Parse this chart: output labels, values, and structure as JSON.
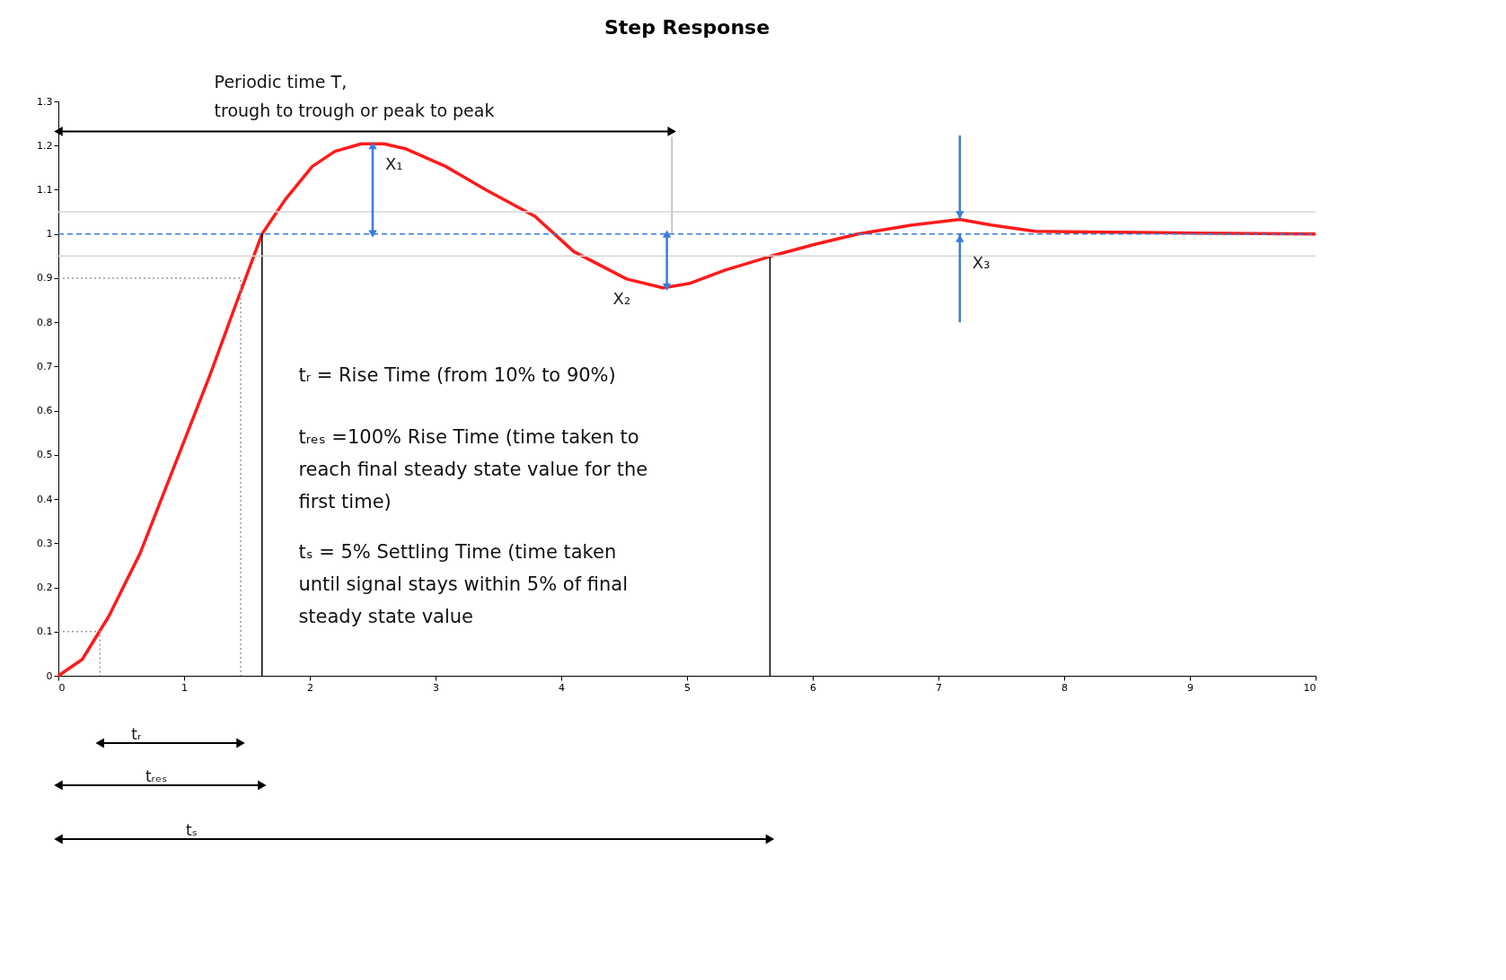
{
  "chart_data": {
    "type": "line",
    "title": "Step Response",
    "series": [
      {
        "color": "#ff1a1a",
        "x": [
          0,
          0.19,
          0.4,
          0.65,
          0.93,
          1.21,
          1.42,
          1.62,
          1.81,
          2.02,
          2.2,
          2.41,
          2.59,
          2.76,
          3.08,
          3.4,
          3.79,
          4.1,
          4.52,
          4.81,
          5.02,
          5.3,
          5.66,
          6.01,
          6.36,
          6.79,
          7.17,
          7.42,
          7.77,
          8.34,
          9.04,
          10
        ],
        "values": [
          0,
          0.037,
          0.134,
          0.277,
          0.48,
          0.684,
          0.847,
          1.0,
          1.08,
          1.153,
          1.187,
          1.204,
          1.204,
          1.193,
          1.153,
          1.1,
          1.04,
          0.96,
          0.898,
          0.878,
          0.888,
          0.918,
          0.949,
          0.976,
          1.0,
          1.02,
          1.033,
          1.02,
          1.006,
          1.004,
          1.002,
          1.0
        ]
      },
      {
        "type": "line",
        "color": "#999999",
        "line_style": "dotted",
        "x": [
          0,
          0.33,
          0.33
        ],
        "values": [
          0.1,
          0.1,
          0
        ]
      },
      {
        "type": "line",
        "color": "#999999",
        "line_style": "dotted",
        "x": [
          0,
          1.45,
          1.45
        ],
        "values": [
          0.9,
          0.9,
          0
        ]
      },
      {
        "type": "line",
        "color": "#000000",
        "line_style": "solid",
        "x": [
          1.62,
          1.62
        ],
        "values": [
          1.0,
          0
        ]
      },
      {
        "type": "line",
        "color": "#000000",
        "line_style": "solid",
        "x": [
          5.66,
          5.66
        ],
        "values": [
          0.95,
          0
        ]
      },
      {
        "type": "line",
        "color": "#bbbbbb",
        "line_style": "solid",
        "x": [
          4.88,
          4.88
        ],
        "values": [
          1.22,
          1.0
        ]
      }
    ],
    "xlim": [
      0,
      10
    ],
    "ylim": [
      0,
      1.3
    ],
    "xticks": [
      0,
      1,
      2,
      3,
      4,
      5,
      6,
      7,
      8,
      9,
      10
    ],
    "yticks": [
      0,
      0.1,
      0.2,
      0.3,
      0.4,
      0.5,
      0.6,
      0.7,
      0.8,
      0.9,
      1,
      1.1,
      1.2,
      1.3
    ],
    "grid": false,
    "marker": "none",
    "line_style": "solid",
    "ref_lines": [
      {
        "axis": "y",
        "value": 1,
        "color": "#3b7dd8",
        "line_style": "dashed"
      },
      {
        "axis": "y",
        "value": 1.05,
        "color": "#d6d6d6",
        "line_style": "solid"
      },
      {
        "axis": "y",
        "value": 0.95,
        "color": "#d6d6d6",
        "line_style": "solid"
      }
    ],
    "annotations": [
      "Periodic time T,\ntrough to trough or peak to peak",
      "tᵣ        = Rise Time (from 10% to 90%)",
      "tᵣₑₛ  =100% Rise Time (time taken to\nreach final steady state value for the\nfirst time)",
      "tₛ  = 5% Settling Time (time taken\nuntil signal stays within 5%  of  final\nsteady state value",
      {
        "text": "X₁",
        "x": 2.5,
        "y": 1.2
      },
      {
        "text": "X₂",
        "x": 4.84,
        "y": 0.88
      },
      {
        "text": "X₃",
        "x": 7.17,
        "y": 1.033
      },
      "tᵣ",
      "tᵣₑₛ",
      "tₛ"
    ]
  }
}
